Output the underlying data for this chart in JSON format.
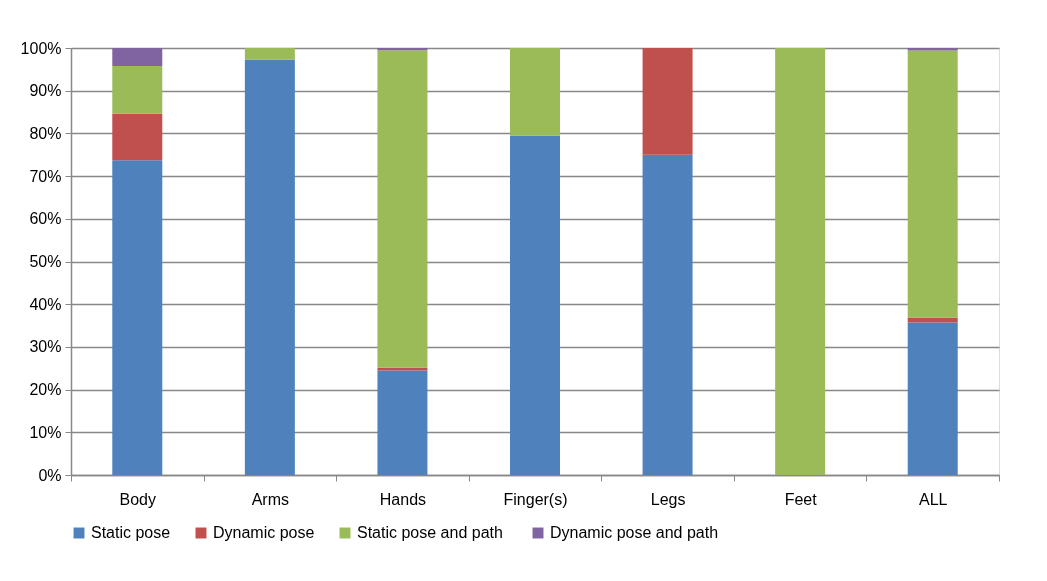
{
  "chart_data": {
    "type": "bar",
    "stacked": true,
    "categories": [
      "Body",
      "Arms",
      "Hands",
      "Finger(s)",
      "Legs",
      "Feet",
      "ALL"
    ],
    "series": [
      {
        "name": "Static pose",
        "color": "#4f81bd",
        "values": [
          73.7,
          97.3,
          24.5,
          79.5,
          75,
          0,
          35.7
        ]
      },
      {
        "name": "Dynamic pose",
        "color": "#c0504d",
        "values": [
          10.9,
          0,
          0.6,
          0,
          25,
          0,
          1.2
        ]
      },
      {
        "name": "Static  pose and path",
        "color": "#9bbb59",
        "values": [
          11.2,
          2.7,
          74.4,
          20.5,
          0,
          100,
          62.5
        ]
      },
      {
        "name": "Dynamic pose and path",
        "color": "#8064a2",
        "values": [
          4.2,
          0,
          0.5,
          0,
          0,
          0,
          0.6
        ]
      }
    ],
    "ylim": [
      0,
      100
    ],
    "yticks": [
      {
        "value": 0,
        "label": "0%"
      },
      {
        "value": 10,
        "label": "10%"
      },
      {
        "value": 20,
        "label": "20%"
      },
      {
        "value": 30,
        "label": "30%"
      },
      {
        "value": 40,
        "label": "40%"
      },
      {
        "value": 50,
        "label": "50%"
      },
      {
        "value": 60,
        "label": "60%"
      },
      {
        "value": 70,
        "label": "70%"
      },
      {
        "value": 80,
        "label": "80%"
      },
      {
        "value": 90,
        "label": "90%"
      },
      {
        "value": 100,
        "label": "100%"
      }
    ],
    "grid": "y",
    "legend": "bottom"
  }
}
